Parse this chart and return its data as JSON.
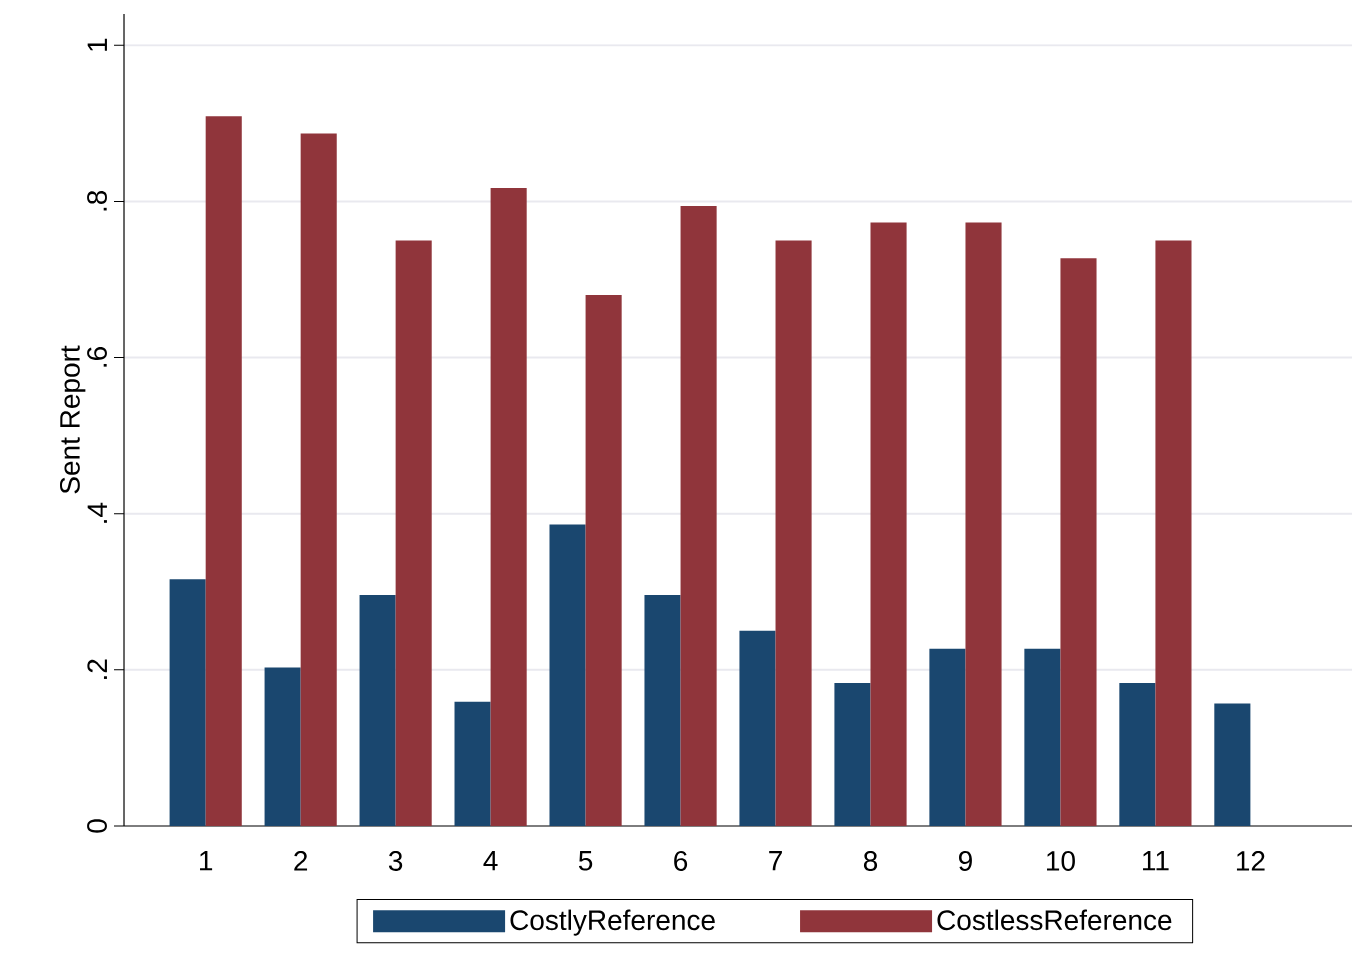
{
  "chart_data": {
    "type": "bar",
    "ylabel": "Sent Report",
    "categories": [
      "1",
      "2",
      "3",
      "4",
      "5",
      "6",
      "7",
      "8",
      "9",
      "10",
      "11",
      "12"
    ],
    "series": [
      {
        "name": "CostlyReference",
        "color": "#1a476f",
        "values": [
          0.316,
          0.203,
          0.296,
          0.159,
          0.386,
          0.296,
          0.25,
          0.183,
          0.227,
          0.227,
          0.183,
          0.157
        ]
      },
      {
        "name": "CostlessReference",
        "color": "#90353b",
        "values": [
          0.909,
          0.887,
          0.75,
          0.817,
          0.68,
          0.794,
          0.75,
          0.773,
          0.773,
          0.727,
          0.75,
          null
        ]
      }
    ],
    "ylim": [
      0,
      1.04
    ],
    "yticks": [
      0,
      {
        "value": 0.2,
        "label": ".2"
      },
      {
        "value": 0.4,
        "label": ".4"
      },
      {
        "value": 0.6,
        "label": ".6"
      },
      {
        "value": 0.8,
        "label": ".8"
      },
      1
    ],
    "grid": "y",
    "legend": "bottom"
  }
}
